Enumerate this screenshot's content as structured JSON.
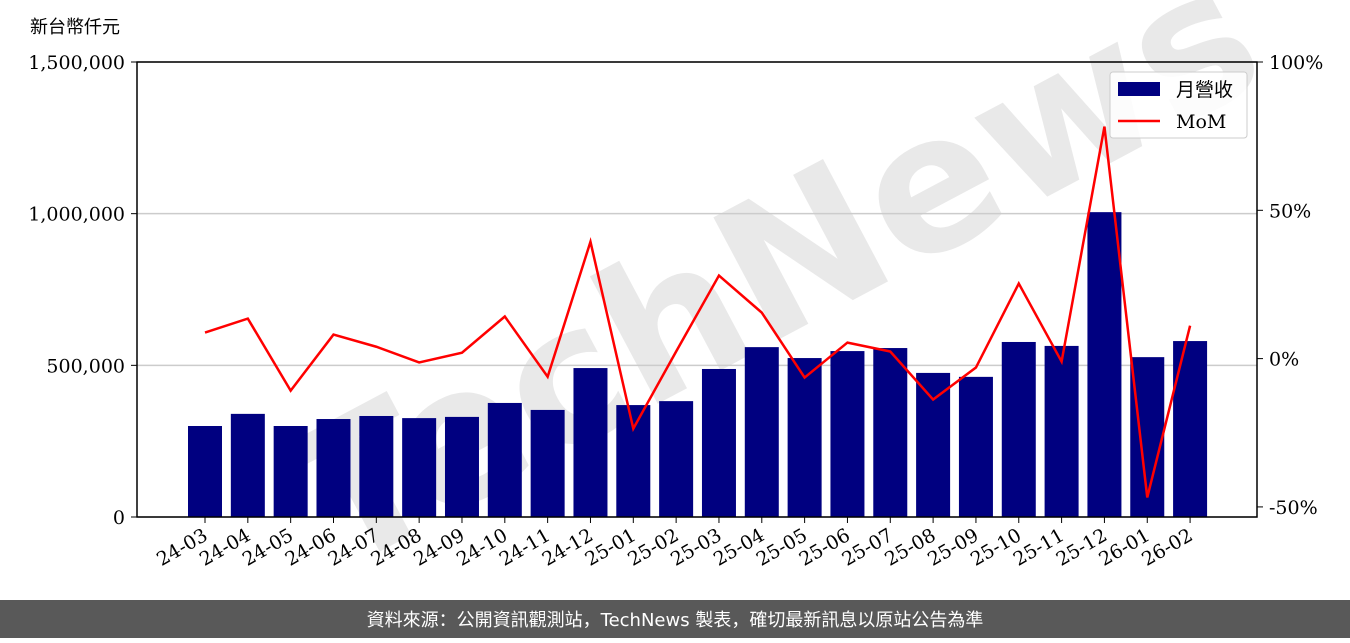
{
  "chart_data": {
    "type": "bar_line",
    "y_axis_label": "新台幣仟元",
    "watermark": "TechNews",
    "footer": "資料來源：公開資訊觀測站，TechNews 製表，確切最新訊息以原站公告為準",
    "categories": [
      "24-03",
      "24-04",
      "24-05",
      "24-06",
      "24-07",
      "24-08",
      "24-09",
      "24-10",
      "24-11",
      "24-12",
      "25-01",
      "25-02",
      "25-03",
      "25-04",
      "25-05",
      "25-06",
      "25-07",
      "25-08",
      "25-09",
      "25-10",
      "25-11",
      "25-12",
      "26-01",
      "26-02"
    ],
    "series": [
      {
        "name": "月營收",
        "type": "bar",
        "color": "#000080",
        "values": [
          300000,
          340000,
          300000,
          323000,
          333000,
          326000,
          330000,
          376000,
          353000,
          491000,
          369000,
          382000,
          488000,
          560000,
          524000,
          547000,
          557000,
          475000,
          462000,
          577000,
          564000,
          1005000,
          527000,
          580000
        ]
      },
      {
        "name": "MoM",
        "type": "line",
        "color": "#ff0000",
        "axis": "y2",
        "values": [
          8.8,
          13.5,
          -10.8,
          8.1,
          4,
          -1.3,
          2,
          14.2,
          -6.1,
          39.4,
          -23.6,
          2.4,
          28,
          15.5,
          -6.4,
          5.4,
          2.4,
          -13.8,
          -3,
          25.3,
          -1,
          78.2,
          -46.8,
          11.1
        ]
      }
    ],
    "ylim": [
      0,
      1500000
    ],
    "yticks": [
      0,
      {
        "value": 500000,
        "label": "500,000"
      },
      {
        "value": 1000000,
        "label": "1,000,000"
      },
      {
        "value": 1500000,
        "label": "1,500,000"
      }
    ],
    "y2lim": [
      -53.4,
      100
    ],
    "y2ticks": [
      {
        "value": -50,
        "label": "-50%"
      },
      {
        "value": 0,
        "label": "0%"
      },
      {
        "value": 50,
        "label": "50%"
      },
      {
        "value": 100,
        "label": "100%"
      }
    ],
    "grid": true,
    "legend": "upper right"
  }
}
